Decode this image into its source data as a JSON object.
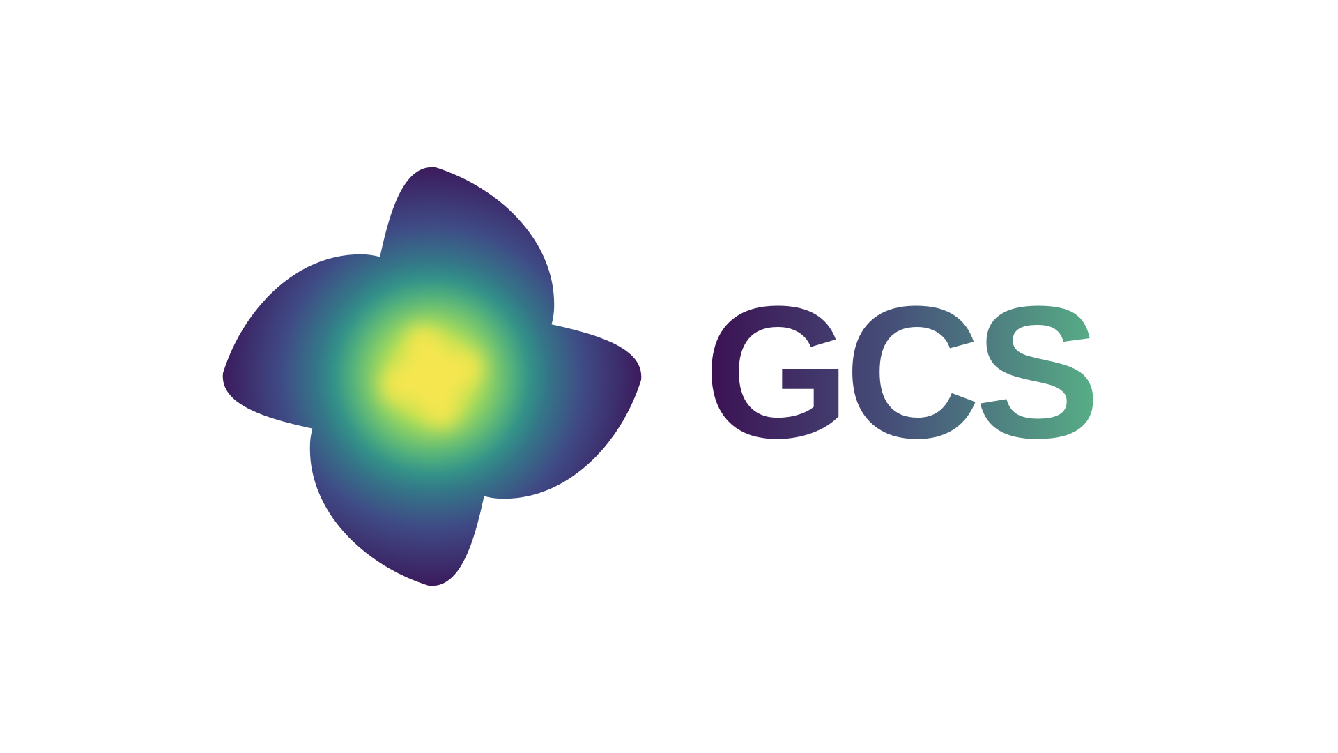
{
  "brand": {
    "name": "GCS",
    "logo_icon": "petal-flower-icon"
  },
  "colors": {
    "background": "#ffffff",
    "petal_dark": "#3a0a4e",
    "petal_mid": "#3f4a85",
    "petal_teal": "#2f8d8a",
    "petal_green": "#7bd26a",
    "center_yellow": "#f5e64f",
    "wordmark_start": "#3b0f52",
    "wordmark_mid": "#46527a",
    "wordmark_end": "#57ae86"
  }
}
